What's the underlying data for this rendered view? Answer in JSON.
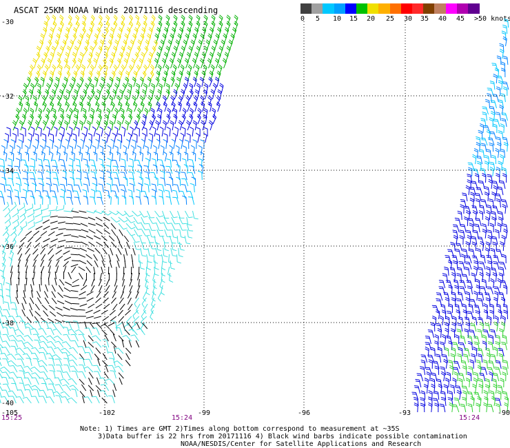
{
  "title": "ASCAT 25KM NOAA Winds 20171116 descending",
  "legend": {
    "colors": [
      "#404040",
      "#a0a0a0",
      "#00c8ff",
      "#00a0ff",
      "#0000ff",
      "#00c000",
      "#f0e000",
      "#ffb000",
      "#ff7000",
      "#ff0000",
      "#ff2a2a",
      "#804000",
      "#c08060",
      "#ff00ff",
      "#b000b0",
      "#600090"
    ],
    "labels": [
      "0",
      "5",
      "10",
      "15",
      "20",
      "25",
      "30",
      "35",
      "40",
      "45",
      ">50 knots"
    ]
  },
  "map": {
    "lon_ticks": [
      "-105",
      "-102",
      "-99",
      "-96",
      "-93",
      "-90"
    ],
    "lat_ticks": [
      "-30",
      "-32",
      "-34",
      "-36",
      "-38",
      "-40"
    ],
    "swath_times": [
      "15:25",
      "15:24",
      "15:24"
    ],
    "colors": {
      "grid": "#000000",
      "black_barb": "#000000",
      "light_blue": "#40e0e0",
      "cyan": "#00c8ff",
      "mid_blue": "#0080ff",
      "blue": "#0000e0",
      "green": "#00b000",
      "bright_green": "#30d030",
      "yellow": "#f0e000",
      "time_label": "#800080"
    }
  },
  "notes": {
    "line1": "Note: 1) Times are GMT 2)Times along bottom correspond to measurement at ~35S",
    "line2": "3)Data buffer is 22 hrs from 20171116 4) Black wind barbs indicate possible contamination",
    "line3": "NOAA/NESDIS/Center for Satellite Applications and Research"
  }
}
